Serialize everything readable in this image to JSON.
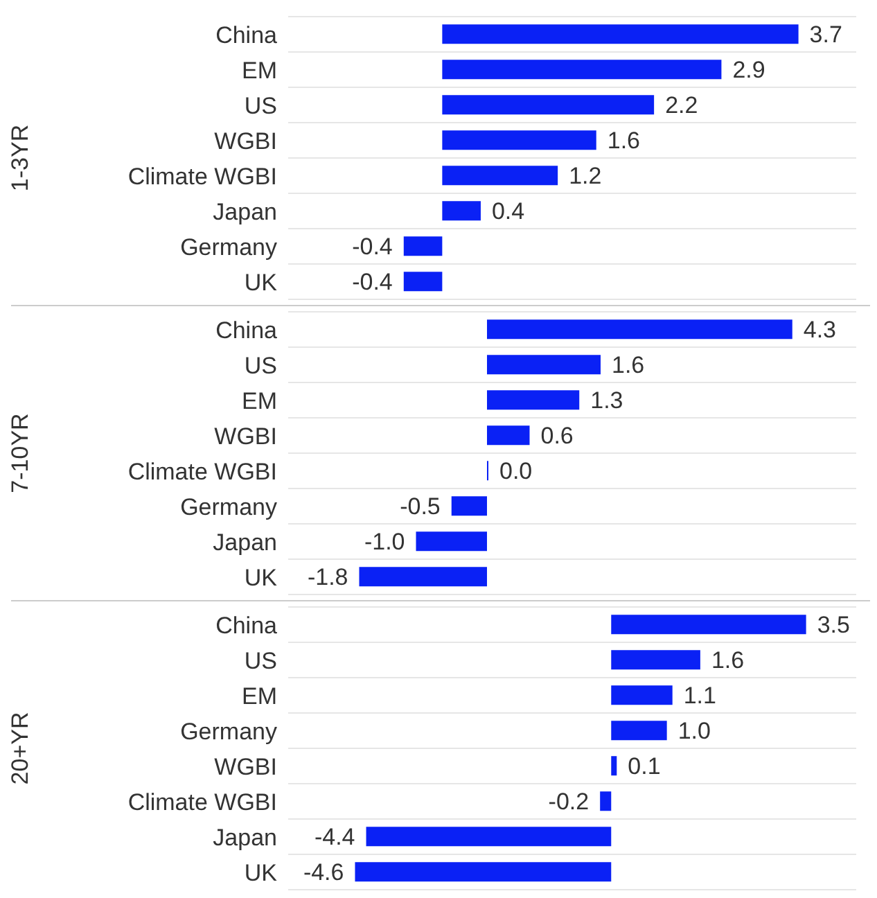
{
  "chart_data": [
    {
      "type": "bar",
      "orientation": "horizontal",
      "ylabel": "1-3YR",
      "categories": [
        "China",
        "EM",
        "US",
        "WGBI",
        "Climate WGBI",
        "Japan",
        "Germany",
        "UK"
      ],
      "series": [
        {
          "color": "#0a21f5",
          "values": [
            3.7,
            2.9,
            2.2,
            1.6,
            1.2,
            0.4,
            -0.4,
            -0.4
          ],
          "value_labels": [
            "3.7",
            "2.9",
            "2.2",
            "1.6",
            "1.2",
            "0.4",
            "-0.4",
            "-0.4"
          ]
        }
      ],
      "xlim": [
        -1.6,
        4.3
      ],
      "grid": "y",
      "tick_labels": "y"
    },
    {
      "type": "bar",
      "orientation": "horizontal",
      "ylabel": "7-10YR",
      "categories": [
        "China",
        "US",
        "EM",
        "WGBI",
        "Climate WGBI",
        "Germany",
        "Japan",
        "UK"
      ],
      "series": [
        {
          "color": "#0a21f5",
          "values": [
            4.3,
            1.6,
            1.3,
            0.6,
            0.0,
            -0.5,
            -1.0,
            -1.8
          ],
          "value_labels": [
            "4.3",
            "1.6",
            "1.3",
            "0.6",
            "0.0",
            "-0.5",
            "-1.0",
            "-1.8"
          ]
        }
      ],
      "xlim": [
        -2.8,
        5.2
      ],
      "grid": "y",
      "tick_labels": "y"
    },
    {
      "type": "bar",
      "orientation": "horizontal",
      "ylabel": "20+YR",
      "categories": [
        "China",
        "US",
        "EM",
        "Germany",
        "WGBI",
        "Climate WGBI",
        "Japan",
        "UK"
      ],
      "series": [
        {
          "color": "#0a21f5",
          "values": [
            3.5,
            1.6,
            1.1,
            1.0,
            0.1,
            -0.2,
            -4.4,
            -4.6
          ],
          "value_labels": [
            "3.5",
            "1.6",
            "1.1",
            "1.0",
            "0.1",
            "-0.2",
            "-4.4",
            "-4.6"
          ]
        }
      ],
      "xlim": [
        -5.8,
        4.4
      ],
      "grid": "y",
      "tick_labels": "y"
    }
  ]
}
